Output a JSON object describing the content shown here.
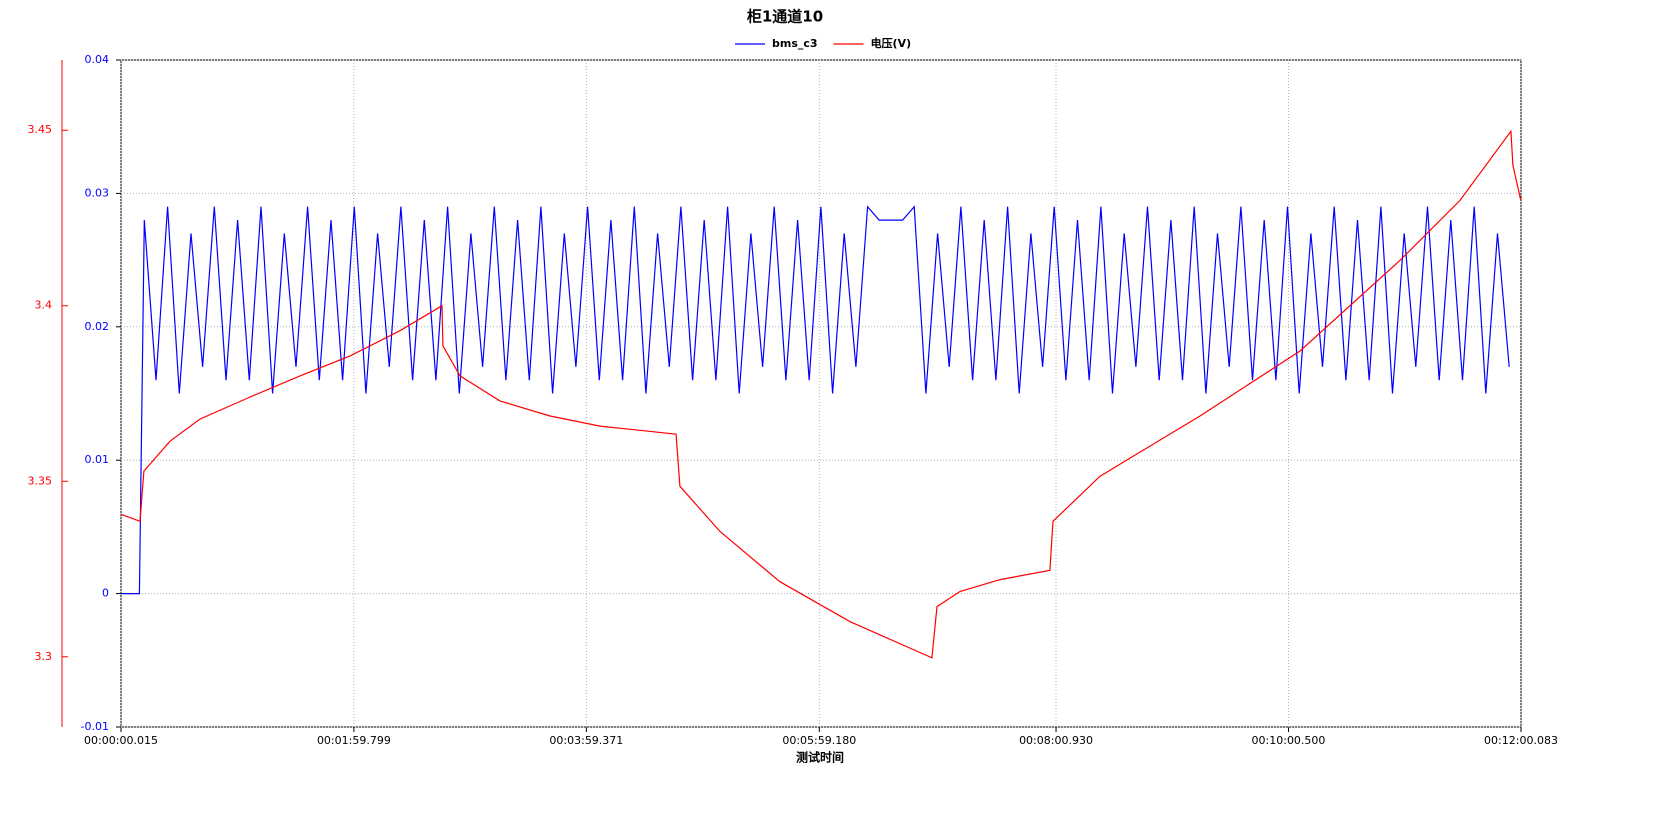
{
  "chart_data": {
    "type": "line",
    "title": "柜1通道10",
    "xlabel": "测试时间",
    "xlim": [
      0.015,
      720.083
    ],
    "xticks": [
      {
        "value": 0.015,
        "label": "00:00:00.015"
      },
      {
        "value": 119.799,
        "label": "00:01:59.799"
      },
      {
        "value": 239.371,
        "label": "00:03:59.371"
      },
      {
        "value": 359.18,
        "label": "00:05:59.180"
      },
      {
        "value": 480.93,
        "label": "00:08:00.930"
      },
      {
        "value": 600.5,
        "label": "00:10:00.500"
      },
      {
        "value": 720.083,
        "label": "00:12:00.083"
      }
    ],
    "ylim": [
      -0.01,
      0.04
    ],
    "yticks": [
      -0.01,
      0,
      0.01,
      0.02,
      0.03,
      0.04
    ],
    "y2lim": [
      3.28,
      3.47
    ],
    "y2ticks": [
      3.3,
      3.35,
      3.4,
      3.45
    ],
    "grid": true,
    "series": [
      {
        "name": "bms_c3",
        "color": "#0000ff",
        "x": [
          0.015,
          9.5,
          12,
          18,
          24,
          30,
          36,
          42,
          48,
          54,
          60,
          66,
          72,
          78,
          84,
          90,
          96,
          102,
          108,
          114,
          120,
          126,
          132,
          138,
          144,
          150,
          156,
          162,
          168,
          174,
          180,
          186,
          192,
          198,
          204,
          210,
          216,
          222,
          228,
          234,
          240,
          246,
          252,
          258,
          264,
          270,
          276,
          282,
          288,
          294,
          300,
          306,
          312,
          318,
          324,
          330,
          336,
          342,
          348,
          354,
          360,
          366,
          372,
          378,
          384,
          390,
          396,
          402,
          408,
          414,
          420,
          426,
          432,
          438,
          444,
          450,
          456,
          462,
          468,
          474,
          480,
          486,
          492,
          498,
          504,
          510,
          516,
          522,
          528,
          534,
          540,
          546,
          552,
          558,
          564,
          570,
          576,
          582,
          588,
          594,
          600,
          606,
          612,
          618,
          624,
          630,
          636,
          642,
          648,
          654,
          660,
          666,
          672,
          678,
          684,
          690,
          696,
          702,
          708,
          714
        ],
        "values": [
          0,
          0,
          0.028,
          0.016,
          0.029,
          0.015,
          0.027,
          0.017,
          0.029,
          0.016,
          0.028,
          0.016,
          0.029,
          0.015,
          0.027,
          0.017,
          0.029,
          0.016,
          0.028,
          0.016,
          0.029,
          0.015,
          0.027,
          0.017,
          0.029,
          0.016,
          0.028,
          0.016,
          0.029,
          0.015,
          0.027,
          0.017,
          0.029,
          0.016,
          0.028,
          0.016,
          0.029,
          0.015,
          0.027,
          0.017,
          0.029,
          0.016,
          0.028,
          0.016,
          0.029,
          0.015,
          0.027,
          0.017,
          0.029,
          0.016,
          0.028,
          0.016,
          0.029,
          0.015,
          0.027,
          0.017,
          0.029,
          0.016,
          0.028,
          0.016,
          0.029,
          0.015,
          0.027,
          0.017,
          0.029,
          0.028,
          0.028,
          0.028,
          0.029,
          0.015,
          0.027,
          0.017,
          0.029,
          0.016,
          0.028,
          0.016,
          0.029,
          0.015,
          0.027,
          0.017,
          0.029,
          0.016,
          0.028,
          0.016,
          0.029,
          0.015,
          0.027,
          0.017,
          0.029,
          0.016,
          0.028,
          0.016,
          0.029,
          0.015,
          0.027,
          0.017,
          0.029,
          0.016,
          0.028,
          0.016,
          0.029,
          0.015,
          0.027,
          0.017,
          0.029,
          0.016,
          0.028,
          0.016,
          0.029,
          0.015,
          0.027,
          0.017,
          0.029,
          0.016,
          0.028,
          0.016,
          0.029,
          0.015,
          0.027,
          0.017
        ]
      },
      {
        "name": "电压(V)",
        "color": "#ff0000",
        "axis": "y2",
        "x": [
          0.015,
          9.8,
          11.8,
          25.2,
          40.6,
          66.4,
          92.1,
          117.8,
          143.5,
          165.1,
          165.6,
          174.4,
          194.9,
          220.7,
          246.4,
          285.5,
          287.5,
          308.1,
          338.9,
          375,
          417.1,
          419.7,
          431.5,
          452.1,
          477.8,
          479.4,
          503.5,
          555,
          606.4,
          657.8,
          688.7,
          714.9,
          715.9,
          720
        ],
        "values": [
          3.3406,
          3.3386,
          3.3529,
          3.3614,
          3.3677,
          3.374,
          3.38,
          3.3857,
          3.3929,
          3.4,
          3.3886,
          3.38,
          3.3729,
          3.3686,
          3.3657,
          3.3634,
          3.3486,
          3.3357,
          3.3214,
          3.31,
          3.2997,
          3.3143,
          3.3186,
          3.322,
          3.3246,
          3.3386,
          3.3514,
          3.3686,
          3.3871,
          3.4129,
          3.43,
          3.4497,
          3.44,
          3.43
        ]
      }
    ]
  }
}
